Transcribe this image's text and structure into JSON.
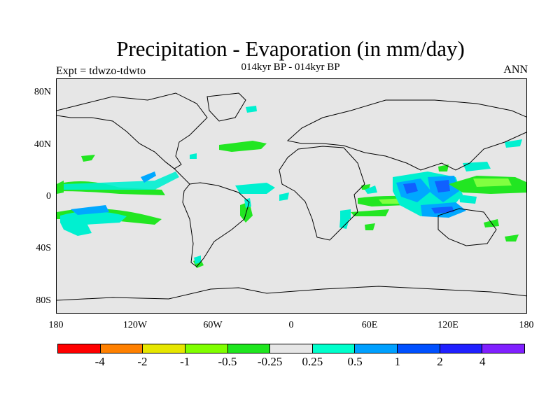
{
  "title": "Precipitation - Evaporation (in mm/day)",
  "subtitle": "014kyr BP - 014kyr BP",
  "left_label": "Expt = tdwzo-tdwto",
  "right_label": "ANN",
  "y_ticks": [
    "80N",
    "40N",
    "0",
    "40S",
    "80S"
  ],
  "x_ticks": [
    "180",
    "120W",
    "60W",
    "0",
    "60E",
    "120E",
    "180"
  ],
  "colorbar": {
    "labels": [
      "-4",
      "-2",
      "-1",
      "-0.5",
      "-0.25",
      "0.25",
      "0.5",
      "1",
      "2",
      "4"
    ],
    "colors": [
      "#ff0000",
      "#ff8000",
      "#e6e600",
      "#80ff00",
      "#1fe61f",
      "#e6e6e6",
      "#00ffcc",
      "#00a0ff",
      "#0050ff",
      "#2020ff",
      "#8020ff"
    ]
  },
  "colors": {
    "background": "#e6e6e6",
    "green": "#22e622",
    "light_green": "#80ff40",
    "cyan": "#00f0d0",
    "light_blue": "#00a8ff",
    "blue": "#1060ff"
  }
}
